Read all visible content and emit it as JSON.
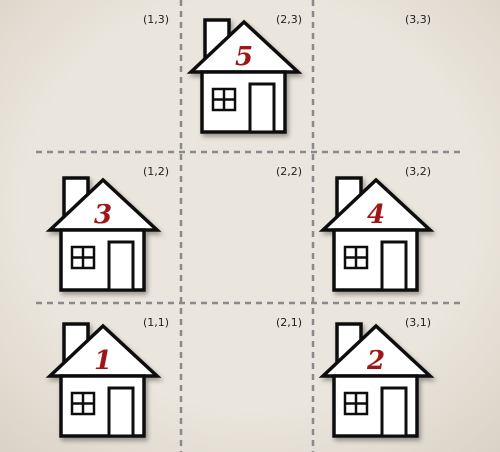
{
  "colors": {
    "background": "#ebe6dd",
    "grid_line": "#8a8a8a",
    "house_stroke": "#111111",
    "house_fill": "#ffffff",
    "number": "#a01818",
    "label": "#222222"
  },
  "cells": [
    {
      "label": "(1,3)"
    },
    {
      "label": "(2,3)",
      "house": "5"
    },
    {
      "label": "(3,3)"
    },
    {
      "label": "(1,2)",
      "house": "3"
    },
    {
      "label": "(2,2)"
    },
    {
      "label": "(3,2)",
      "house": "4"
    },
    {
      "label": "(1,1)",
      "house": "1"
    },
    {
      "label": "(2,1)"
    },
    {
      "label": "(3,1)",
      "house": "2"
    }
  ]
}
